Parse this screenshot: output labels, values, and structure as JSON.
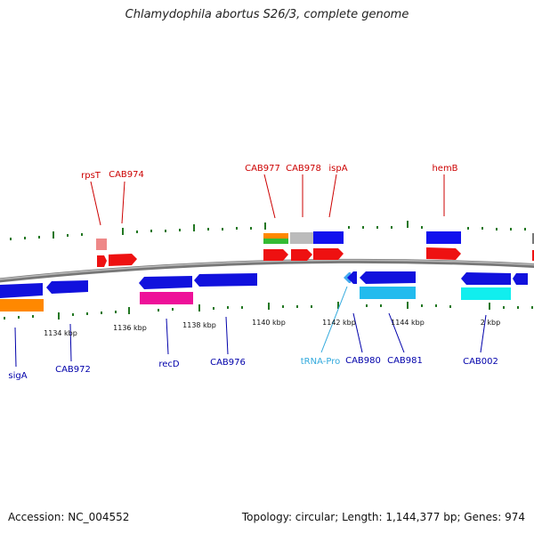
{
  "title": "Chlamydophila abortus S26/3, complete genome",
  "footer": {
    "accession": "Accession: NC_004552",
    "summary": "Topology: circular; Length: 1,144,377 bp; Genes: 974"
  },
  "colors": {
    "forward_label": "#cc0000",
    "reverse_label": "#0000aa",
    "trna_label": "#33aadd",
    "tick": "#227722",
    "backbone": "#888888"
  },
  "kbp_labels": [
    {
      "id": "kbp-1134",
      "text": "1134 kbp"
    },
    {
      "id": "kbp-1136",
      "text": "1136 kbp"
    },
    {
      "id": "kbp-1138",
      "text": "1138 kbp"
    },
    {
      "id": "kbp-1140",
      "text": "1140 kbp"
    },
    {
      "id": "kbp-1142",
      "text": "1142 kbp"
    },
    {
      "id": "kbp-1144",
      "text": "1144 kbp"
    },
    {
      "id": "kbp-2",
      "text": "2 kbp"
    }
  ],
  "gene_labels": [
    {
      "id": "rpsT",
      "text": "rpsT",
      "strand": "forward"
    },
    {
      "id": "CAB974",
      "text": "CAB974",
      "strand": "forward"
    },
    {
      "id": "CAB977",
      "text": "CAB977",
      "strand": "forward"
    },
    {
      "id": "CAB978",
      "text": "CAB978",
      "strand": "forward"
    },
    {
      "id": "ispA",
      "text": "ispA",
      "strand": "forward"
    },
    {
      "id": "hemB",
      "text": "hemB",
      "strand": "forward"
    },
    {
      "id": "sigA",
      "text": "sigA",
      "strand": "reverse"
    },
    {
      "id": "CAB972",
      "text": "CAB972",
      "strand": "reverse"
    },
    {
      "id": "recD",
      "text": "recD",
      "strand": "reverse"
    },
    {
      "id": "CAB976",
      "text": "CAB976",
      "strand": "reverse"
    },
    {
      "id": "tRNA-Pro",
      "text": "tRNA-Pro",
      "strand": "reverse",
      "kind": "trna"
    },
    {
      "id": "CAB980",
      "text": "CAB980",
      "strand": "reverse"
    },
    {
      "id": "CAB981",
      "text": "CAB981",
      "strand": "reverse"
    },
    {
      "id": "CAB002",
      "text": "CAB002",
      "strand": "reverse"
    }
  ]
}
